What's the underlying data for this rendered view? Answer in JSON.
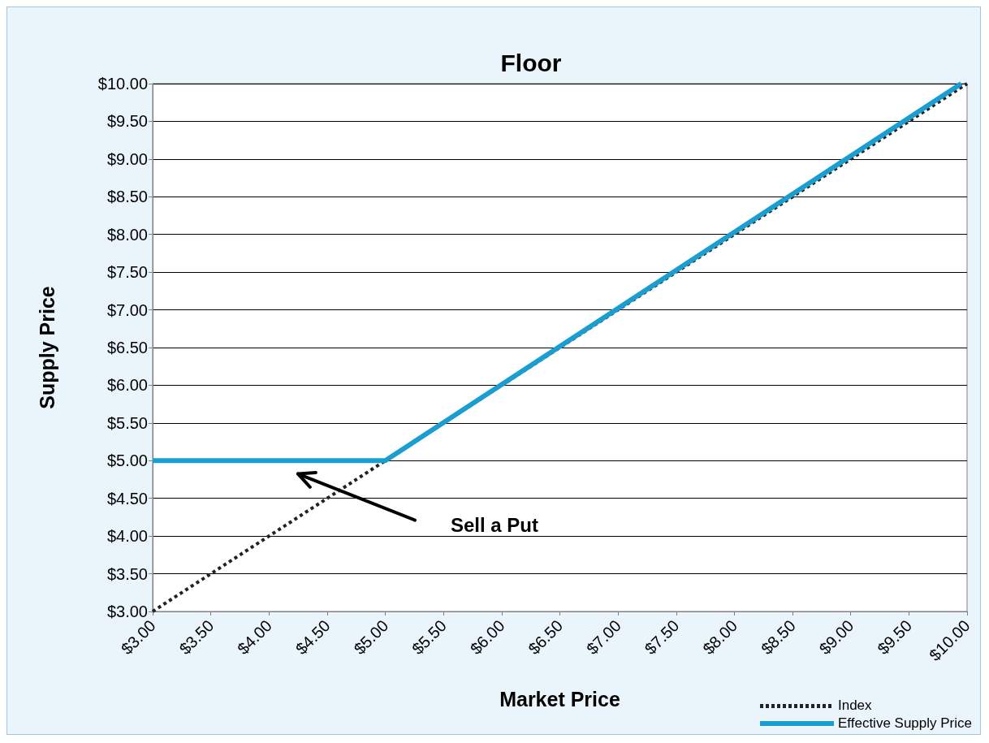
{
  "chart_data": {
    "type": "line",
    "title": "Floor",
    "xlabel": "Market Price",
    "ylabel": "Supply Price",
    "xlim": [
      3,
      10
    ],
    "ylim": [
      3,
      10
    ],
    "xticks": [
      {
        "value": 3,
        "label": "$3.00"
      },
      {
        "value": 3.5,
        "label": "$3.50"
      },
      {
        "value": 4,
        "label": "$4.00"
      },
      {
        "value": 4.5,
        "label": "$4.50"
      },
      {
        "value": 5,
        "label": "$5.00"
      },
      {
        "value": 5.5,
        "label": "$5.50"
      },
      {
        "value": 6,
        "label": "$6.00"
      },
      {
        "value": 6.5,
        "label": "$6.50"
      },
      {
        "value": 7,
        "label": "$7.00"
      },
      {
        "value": 7.5,
        "label": "$7.50"
      },
      {
        "value": 8,
        "label": "$8.00"
      },
      {
        "value": 8.5,
        "label": "$8.50"
      },
      {
        "value": 9,
        "label": "$9.00"
      },
      {
        "value": 9.5,
        "label": "$9.50"
      },
      {
        "value": 10,
        "label": "$10.00"
      }
    ],
    "yticks": [
      {
        "value": 3,
        "label": "$3.00"
      },
      {
        "value": 3.5,
        "label": "$3.50"
      },
      {
        "value": 4,
        "label": "$4.00"
      },
      {
        "value": 4.5,
        "label": "$4.50"
      },
      {
        "value": 5,
        "label": "$5.00"
      },
      {
        "value": 5.5,
        "label": "$5.50"
      },
      {
        "value": 6,
        "label": "$6.00"
      },
      {
        "value": 6.5,
        "label": "$6.50"
      },
      {
        "value": 7,
        "label": "$7.00"
      },
      {
        "value": 7.5,
        "label": "$7.50"
      },
      {
        "value": 8,
        "label": "$8.00"
      },
      {
        "value": 8.5,
        "label": "$8.50"
      },
      {
        "value": 9,
        "label": "$9.00"
      },
      {
        "value": 9.5,
        "label": "$9.50"
      },
      {
        "value": 10,
        "label": "$10.00"
      }
    ],
    "series": [
      {
        "name": "Index",
        "color": "#222222",
        "line_style": "dotted",
        "x": [
          3,
          10
        ],
        "values": [
          3,
          10
        ]
      },
      {
        "name": "Effective Supply Price",
        "color": "#1a9ed0",
        "line_style": "solid",
        "x": [
          3,
          5,
          9.95
        ],
        "values": [
          5,
          5,
          10
        ]
      }
    ],
    "annotations": [
      "Sell a Put"
    ],
    "grid": "y",
    "legend": "bottom right"
  }
}
